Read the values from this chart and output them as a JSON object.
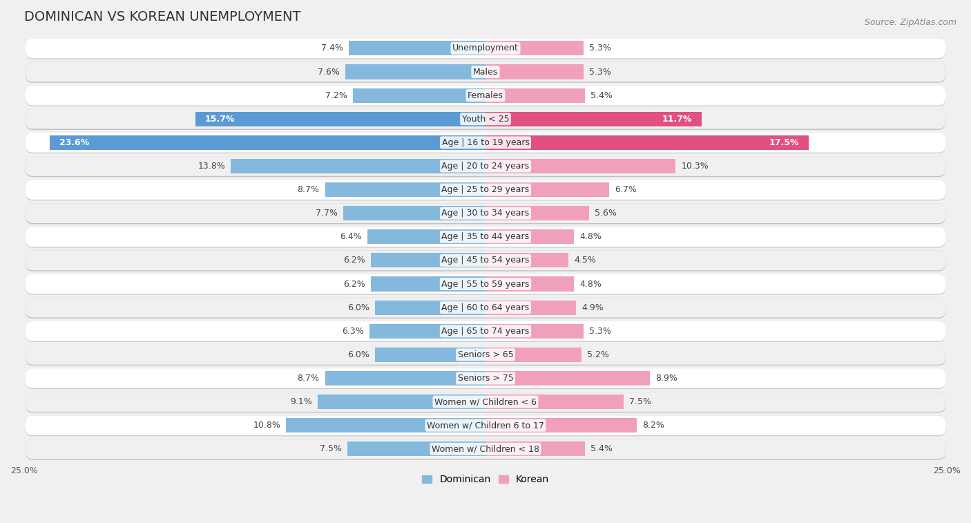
{
  "title": "DOMINICAN VS KOREAN UNEMPLOYMENT",
  "source": "Source: ZipAtlas.com",
  "categories": [
    "Unemployment",
    "Males",
    "Females",
    "Youth < 25",
    "Age | 16 to 19 years",
    "Age | 20 to 24 years",
    "Age | 25 to 29 years",
    "Age | 30 to 34 years",
    "Age | 35 to 44 years",
    "Age | 45 to 54 years",
    "Age | 55 to 59 years",
    "Age | 60 to 64 years",
    "Age | 65 to 74 years",
    "Seniors > 65",
    "Seniors > 75",
    "Women w/ Children < 6",
    "Women w/ Children 6 to 17",
    "Women w/ Children < 18"
  ],
  "dominican": [
    7.4,
    7.6,
    7.2,
    15.7,
    23.6,
    13.8,
    8.7,
    7.7,
    6.4,
    6.2,
    6.2,
    6.0,
    6.3,
    6.0,
    8.7,
    9.1,
    10.8,
    7.5
  ],
  "korean": [
    5.3,
    5.3,
    5.4,
    11.7,
    17.5,
    10.3,
    6.7,
    5.6,
    4.8,
    4.5,
    4.8,
    4.9,
    5.3,
    5.2,
    8.9,
    7.5,
    8.2,
    5.4
  ],
  "dominican_color_normal": "#85b8dd",
  "dominican_color_highlight": "#5b9bd5",
  "korean_color_normal": "#f0a0bc",
  "korean_color_highlight": "#e05080",
  "axis_limit": 25.0,
  "bg_color": "#f0f0f0",
  "row_bg_light": "#f8f8f8",
  "row_bg_dark": "#e8e8e8",
  "bar_height": 0.62,
  "label_fontsize": 9.0,
  "title_fontsize": 14,
  "source_fontsize": 9,
  "tick_fontsize": 9,
  "legend_fontsize": 10,
  "highlight_rows": [
    3,
    4
  ]
}
